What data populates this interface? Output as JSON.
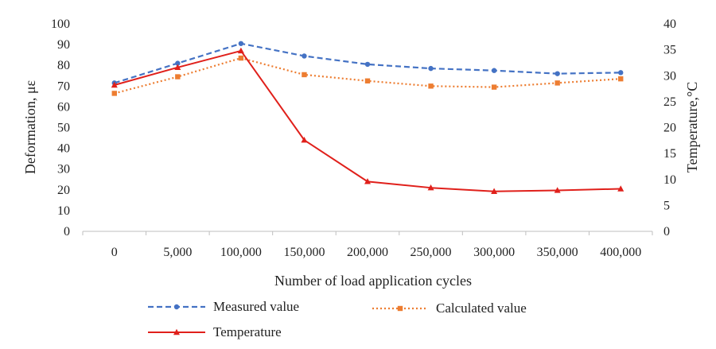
{
  "chart_data": {
    "type": "line",
    "xlabel": "Number of load application cycles",
    "ylabel": "Deformation, με",
    "y2label": "Temperature,°C",
    "categories": [
      "0",
      "5,000",
      "100,000",
      "150,000",
      "200,000",
      "250,000",
      "300,000",
      "350,000",
      "400,000"
    ],
    "ylim": [
      0,
      100
    ],
    "y2lim": [
      0,
      40
    ],
    "yticks": [
      "0",
      "10",
      "20",
      "30",
      "40",
      "50",
      "60",
      "70",
      "80",
      "90",
      "100"
    ],
    "y2ticks": [
      "0",
      "5",
      "10",
      "15",
      "20",
      "25",
      "30",
      "35",
      "40"
    ],
    "grid": false,
    "legend_position": "bottom",
    "series": [
      {
        "name": "Measured value",
        "axis": "left",
        "color": "#4472C4",
        "style": "dashed",
        "marker": "circle",
        "values": [
          71.5,
          81,
          90.5,
          84.5,
          80.5,
          78.5,
          77.5,
          76,
          76.5
        ]
      },
      {
        "name": "Calculated value",
        "axis": "left",
        "color": "#ED7D31",
        "style": "dotted",
        "marker": "square",
        "values": [
          66.5,
          74.5,
          83.5,
          75.5,
          72.5,
          70,
          69.5,
          71.5,
          73.5
        ]
      },
      {
        "name": "Temperature",
        "axis": "right",
        "color": "#E0201B",
        "style": "solid",
        "marker": "triangle",
        "values": [
          28.2,
          31.6,
          34.8,
          17.6,
          9.6,
          8.4,
          7.7,
          7.9,
          8.2
        ]
      }
    ]
  }
}
